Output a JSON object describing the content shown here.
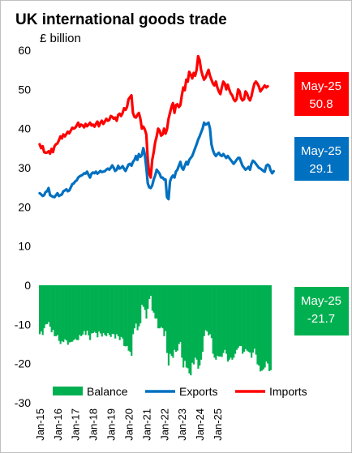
{
  "chart_data": {
    "type": "line",
    "title": "UK international goods trade",
    "subtitle": "£ billion",
    "yticks": [
      60,
      50,
      40,
      30,
      20,
      10,
      0,
      -10,
      -20,
      -30
    ],
    "ylim": [
      -30,
      60
    ],
    "xticks": [
      "Jan-15",
      "Jan-16",
      "Jan-17",
      "Jan-18",
      "Jan-19",
      "Jan-20",
      "Jan-21",
      "Jan-22",
      "Jan-23",
      "Jan-24",
      "Jan-25"
    ],
    "x_start": "Jan-15",
    "x_end": "May-25",
    "legend": [
      "Balance",
      "Exports",
      "Imports"
    ],
    "legend_position": "bottom",
    "grid": false,
    "series": [
      {
        "name": "Imports",
        "type": "line",
        "color": "#ff0000",
        "values": [
          36,
          35,
          35.5,
          34,
          33.8,
          33.9,
          34.2,
          33.6,
          34.8,
          34,
          35.5,
          36,
          36.2,
          37,
          38,
          37.5,
          38.5,
          38,
          38.6,
          39.2,
          38.8,
          39.5,
          40.2,
          40,
          40.2,
          40.8,
          41.5,
          40.5,
          41,
          40.8,
          40.3,
          41.2,
          40.6,
          41,
          41.5,
          40.8,
          41,
          40.5,
          41.2,
          41.8,
          40.6,
          41.5,
          42,
          41.2,
          41.8,
          42.5,
          42,
          42.2,
          43.2,
          43,
          42.5,
          42.8,
          42,
          43.5,
          43.8,
          43.2,
          44,
          45.2,
          44.8,
          45.5,
          47.5,
          48,
          48.5,
          44,
          43,
          42.8,
          43.5,
          44,
          42.5,
          40,
          40.5,
          39.8,
          38.5,
          32,
          28.5,
          27.5,
          32,
          34,
          36.5,
          38,
          40,
          39.5,
          38.2,
          38.5,
          40,
          38.7,
          39.8,
          42.5,
          44,
          45.5,
          46.5,
          44,
          46,
          46.2,
          45.5,
          46,
          48.5,
          50.5,
          49.8,
          52.5,
          52,
          54.5,
          53.8,
          52.8,
          54.2,
          53.5,
          55,
          58.5,
          57.5,
          55,
          53.5,
          52.5,
          53,
          54,
          55,
          53.5,
          52.5,
          51.5,
          51,
          52,
          50.5,
          49.5,
          48.8,
          50.5,
          52,
          51.5,
          50,
          51.2,
          50,
          49,
          48.5,
          47.5,
          47,
          47.5,
          50,
          49.5,
          47.8,
          47.2,
          47.5,
          49.5,
          49,
          47.8,
          47.2,
          48.2,
          50,
          51.5,
          52,
          51.5,
          50.8,
          49.5,
          50,
          50.5,
          51,
          50.5,
          50.8
        ]
      },
      {
        "name": "Exports",
        "type": "line",
        "color": "#0070c0",
        "values": [
          23.5,
          23.2,
          22.8,
          23,
          23.8,
          24,
          24.8,
          23,
          22.8,
          22.6,
          22.5,
          23,
          23.5,
          22.8,
          23,
          23.2,
          24,
          24.2,
          24.5,
          24,
          24.2,
          25,
          25.8,
          26,
          26.5,
          26.8,
          27.5,
          27.8,
          28,
          28.2,
          28.6,
          28.5,
          29,
          28.2,
          27.5,
          28.5,
          28.8,
          28.6,
          29,
          28.5,
          28.8,
          29.2,
          28.9,
          29,
          29.1,
          29.5,
          29.8,
          29.5,
          30,
          30.6,
          30,
          29.2,
          29.5,
          30.5,
          29.8,
          30,
          30.4,
          29.7,
          29.2,
          30,
          30.8,
          31,
          30.5,
          31.5,
          32,
          33,
          32,
          33.5,
          32.8,
          33.2,
          35,
          33.5,
          30,
          26,
          25,
          24.8,
          25.5,
          27,
          28,
          29.5,
          29,
          28.5,
          27.5,
          27.5,
          27,
          27,
          22.5,
          22,
          26.5,
          27.5,
          28,
          27.5,
          29,
          29.5,
          30.5,
          31.5,
          30,
          29.5,
          30.5,
          31.5,
          30.8,
          32,
          32.5,
          33,
          34,
          35,
          36,
          37.2,
          38,
          39,
          40,
          41.5,
          41,
          41.2,
          41.5,
          40,
          36,
          34.5,
          33.5,
          33,
          33.5,
          33.8,
          33.2,
          33,
          33.5,
          33,
          32.5,
          33,
          32.5,
          32,
          31.5,
          31,
          31.5,
          32,
          32.5,
          32.5,
          31.5,
          30.5,
          30,
          29.5,
          29.8,
          30.2,
          29.5,
          31,
          31.8,
          31.5,
          31,
          30.5,
          30,
          29.8,
          29.5,
          29.2,
          29,
          30.5,
          30.8,
          30.5,
          29.3,
          28.6,
          29.1
        ]
      },
      {
        "name": "Balance",
        "type": "bar",
        "color": "#00b050",
        "values": [
          -12.5,
          -11.8,
          -12.7,
          -11,
          -10,
          -9.9,
          -9.4,
          -10.6,
          -12,
          -11.4,
          -13,
          -13,
          -12.7,
          -14.2,
          -15,
          -14.3,
          -14.5,
          -13.8,
          -14.1,
          -15.2,
          -14.6,
          -14.5,
          -14.4,
          -14,
          -13.7,
          -14,
          -14,
          -12.7,
          -13,
          -12.6,
          -11.7,
          -12.7,
          -11.6,
          -12.8,
          -14,
          -12.3,
          -12.2,
          -11.9,
          -12.2,
          -13.3,
          -11.8,
          -12.3,
          -13.1,
          -12.2,
          -12.7,
          -13,
          -12.2,
          -12.7,
          -13.2,
          -12.4,
          -12.5,
          -13.6,
          -12.5,
          -13,
          -14,
          -13.2,
          -13.6,
          -15.5,
          -15.6,
          -15.5,
          -16.7,
          -17,
          -18,
          -12.5,
          -11,
          -9.8,
          -11.5,
          -10.5,
          -9.7,
          -5,
          -5.5,
          -6.3,
          -8.5,
          -6,
          -3.5,
          -2.7,
          -6.5,
          -7,
          -8.5,
          -8.5,
          -11,
          -11,
          -10.7,
          -11,
          -13,
          -11.7,
          -17.3,
          -20.5,
          -17.5,
          -18,
          -18.5,
          -16.5,
          -17,
          -16.7,
          -15,
          -14.5,
          -18.5,
          -21,
          -19.3,
          -21,
          -21.2,
          -22.5,
          -23,
          -19.8,
          -20.2,
          -18.5,
          -19,
          -21.3,
          -20.5,
          -19,
          -17,
          -13,
          -11.5,
          -11.8,
          -12.8,
          -12.5,
          -13.5,
          -17.5,
          -18.5,
          -19,
          -18,
          -18.2,
          -18.2,
          -18.3,
          -17.3,
          -16.5,
          -17.5,
          -19.5,
          -19,
          -18.5,
          -19,
          -18.5,
          -17.5,
          -16.5,
          -16,
          -15.5,
          -15.5,
          -17.5,
          -17,
          -16.3,
          -16.7,
          -17,
          -17.2,
          -18.5,
          -17.2,
          -16.2,
          -17.7,
          -20.2,
          -20.5,
          -22,
          -21.8,
          -21.5,
          -21,
          -19.5,
          -20,
          -21.9,
          -21.7
        ]
      }
    ],
    "callouts": [
      {
        "date": "May-25",
        "value": "50.8",
        "color": "#ff0000"
      },
      {
        "date": "May-25",
        "value": "29.1",
        "color": "#0070c0"
      },
      {
        "date": "May-25",
        "value": "-21.7",
        "color": "#00b050"
      }
    ]
  }
}
